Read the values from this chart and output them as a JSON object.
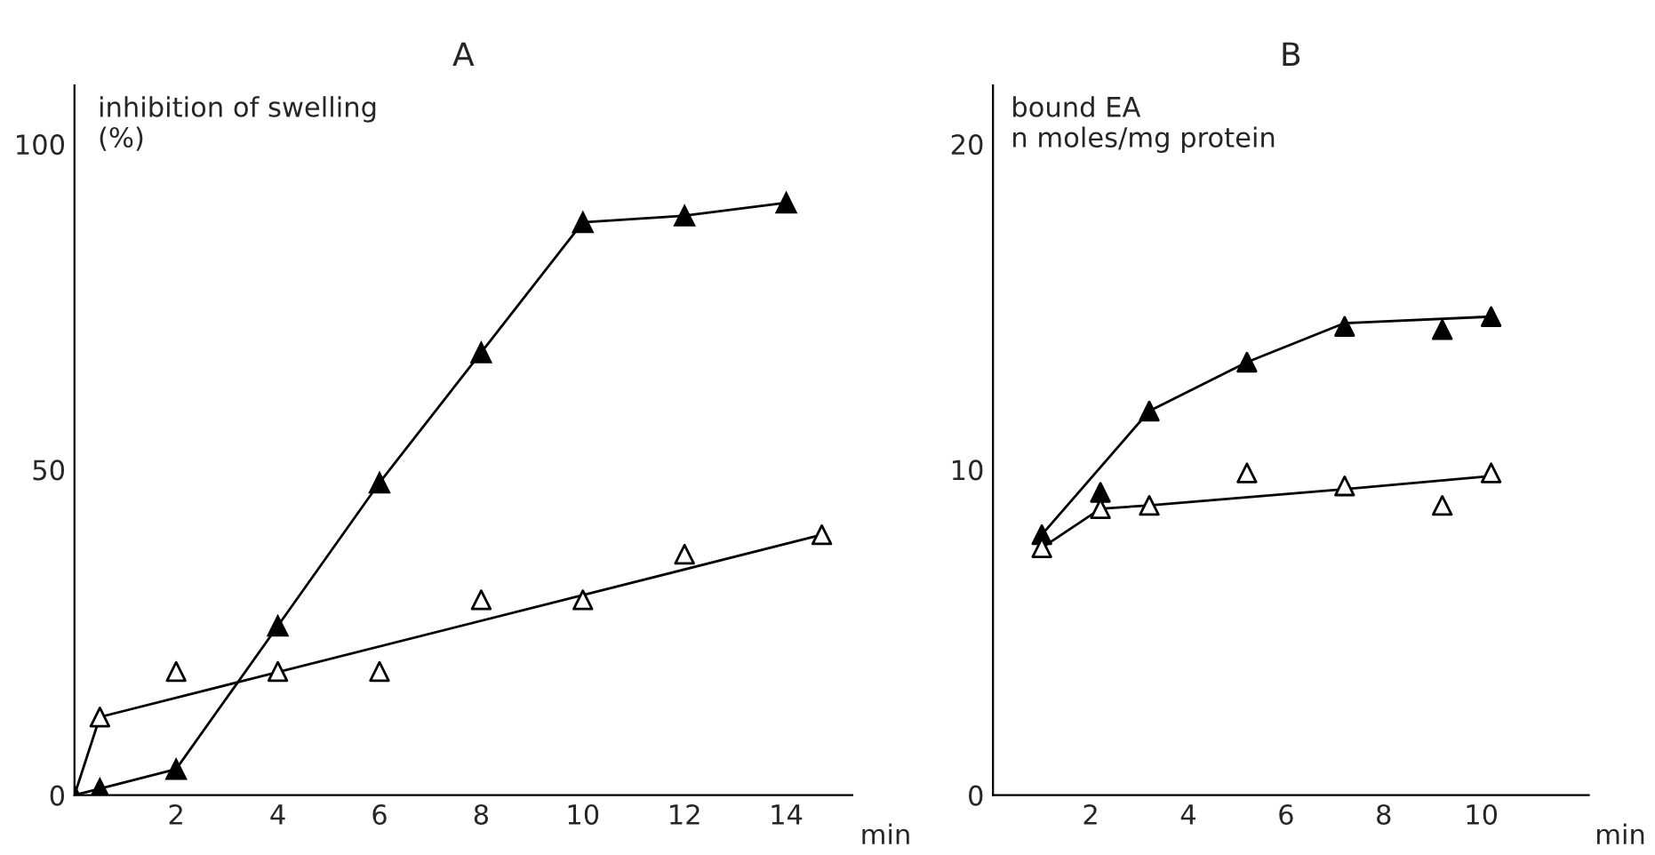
{
  "chart_data": [
    {
      "type": "scatter",
      "title": "A",
      "ylabel": "inhibition of swelling\n(%)",
      "xlabel": "min",
      "xlim": [
        0,
        15.3
      ],
      "ylim": [
        0,
        109
      ],
      "xticks": [
        2,
        4,
        6,
        8,
        10,
        12,
        14
      ],
      "yticks": [
        0,
        50,
        100
      ],
      "grid": false,
      "legend": false,
      "marker": "triangle",
      "series": [
        {
          "type": "line",
          "color": "#000000",
          "x": [
            0,
            0.5,
            2,
            4,
            6,
            8,
            10,
            12,
            14
          ],
          "values": [
            0,
            1,
            4,
            26,
            48,
            68,
            88,
            89,
            91
          ]
        },
        {
          "type": "line",
          "color": "#000000",
          "x": [
            0,
            0.5,
            14.7
          ],
          "values": [
            0,
            12,
            40
          ],
          "marker": "none"
        },
        {
          "color": "#ffffff",
          "x": [
            0.5,
            2,
            4,
            6,
            8,
            10,
            12,
            14.7
          ],
          "values": [
            12,
            19,
            19,
            19,
            30,
            30,
            37,
            40
          ]
        }
      ]
    },
    {
      "type": "scatter",
      "title": "B",
      "ylabel": "bound EA\nn moles/mg protein",
      "xlabel": "min",
      "xlim": [
        0,
        12.2
      ],
      "ylim": [
        0,
        21.8
      ],
      "xticks": [
        2,
        4,
        6,
        8,
        10
      ],
      "yticks": [
        0,
        10,
        20
      ],
      "grid": false,
      "legend": false,
      "marker": "triangle",
      "series": [
        {
          "type": "line",
          "color": "#000000",
          "x": [
            1,
            3.2,
            5.2,
            7.2,
            10.2
          ],
          "values": [
            8.0,
            11.8,
            13.3,
            14.5,
            14.7
          ],
          "marker": "none"
        },
        {
          "color": "#000000",
          "x": [
            1,
            2.2,
            3.2,
            5.2,
            7.2,
            9.2,
            10.2
          ],
          "values": [
            8.0,
            9.3,
            11.8,
            13.3,
            14.4,
            14.3,
            14.7
          ]
        },
        {
          "type": "line",
          "color": "#000000",
          "x": [
            1,
            2.2,
            3.2,
            7.2,
            10.2
          ],
          "values": [
            7.6,
            8.8,
            8.9,
            9.4,
            9.8
          ],
          "marker": "none"
        },
        {
          "color": "#ffffff",
          "x": [
            1,
            2.2,
            3.2,
            5.2,
            7.2,
            9.2,
            10.2
          ],
          "values": [
            7.6,
            8.8,
            8.9,
            9.9,
            9.5,
            8.9,
            9.9
          ]
        }
      ]
    }
  ]
}
